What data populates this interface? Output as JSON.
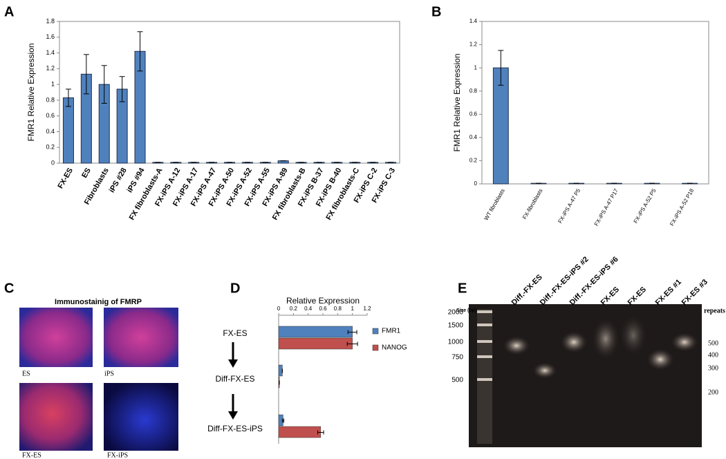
{
  "chart_data": [
    {
      "type": "bar",
      "label": "A",
      "ylabel": "FMR1 Relative Expression",
      "categories": [
        "FX-ES",
        "ES",
        "Fibroblasts",
        "iPS #28",
        "iPS #94",
        "FX fibroblasts-A",
        "FX-iPS A-12",
        "FX-iPS A-17",
        "FX-iPS A-47",
        "FX-iPS A-50",
        "FX-iPS A-52",
        "FX-iPS A-55",
        "FX-iPS A-89",
        "FX fibroblasts-B",
        "FX-iPS B-37",
        "FX-iPS B-40",
        "FX fibroblasts-C",
        "FX-iPS C-2",
        "FX-iPS C-3"
      ],
      "values": [
        0.83,
        1.13,
        1.0,
        0.94,
        1.42,
        0.01,
        0.01,
        0.01,
        0.01,
        0.01,
        0.01,
        0.01,
        0.03,
        0.01,
        0.01,
        0.01,
        0.01,
        0.01,
        0.01
      ],
      "errors": [
        0.11,
        0.25,
        0.24,
        0.16,
        0.25,
        0,
        0,
        0,
        0,
        0,
        0,
        0,
        0,
        0,
        0,
        0,
        0,
        0,
        0
      ],
      "color": "#4f81bd",
      "ylim": [
        0,
        1.8
      ],
      "yticks": [
        0,
        0.2,
        0.4,
        0.6,
        0.8,
        1,
        1.2,
        1.4,
        1.6,
        1.8
      ]
    },
    {
      "type": "bar",
      "label": "B",
      "ylabel": "FMR1 Relative Expression",
      "categories": [
        "WT fibroblasts",
        "FX-fibroblasts",
        "FX-iPS A-47 P5",
        "FX-iPS A-47 P17",
        "FX-iPS A-52 P5",
        "FX-iPS A-52 P18"
      ],
      "values": [
        1.0,
        0.005,
        0.005,
        0.005,
        0.005,
        0.005
      ],
      "errors": [
        0.15,
        0,
        0,
        0,
        0,
        0
      ],
      "color": "#4f81bd",
      "ylim": [
        0,
        1.4
      ],
      "yticks": [
        0,
        0.2,
        0.4,
        0.6,
        0.8,
        1,
        1.2,
        1.4
      ]
    },
    {
      "type": "barh",
      "label": "D",
      "xlabel": "Relative Expression",
      "categories": [
        "FX-ES",
        "Diff-FX-ES",
        "Diff-FX-ES-iPS"
      ],
      "series": [
        {
          "name": "FMR1",
          "color": "#4f81bd",
          "values": [
            1.0,
            0.05,
            0.06
          ],
          "errors": [
            0.06,
            0,
            0.01
          ]
        },
        {
          "name": "NANOG",
          "color": "#c0504d",
          "values": [
            1.0,
            0.01,
            0.57
          ],
          "errors": [
            0.07,
            0,
            0.04
          ]
        }
      ],
      "xlim": [
        0,
        1.2
      ],
      "xticks": [
        0,
        0.2,
        0.4,
        0.6,
        0.8,
        1,
        1.2
      ]
    }
  ],
  "panel_c": {
    "label": "C",
    "title": "Immunostainig of FMRP",
    "images": [
      "ES",
      "iPS",
      "FX-ES",
      "FX-iPS"
    ]
  },
  "panel_e": {
    "label": "E",
    "size_label": "Size (bp)",
    "ladder": [
      2000,
      1500,
      1000,
      750,
      500
    ],
    "lanes": [
      "Diff.-FX-ES",
      "Diff.-FX-ES-iPS #2",
      "Diff.-FX-ES-iPS #6",
      "FX-ES",
      "FX-ES",
      "FX-ES #1",
      "FX-ES #3"
    ],
    "repeats_label": "repeats",
    "repeats": [
      500,
      400,
      300,
      200
    ]
  }
}
